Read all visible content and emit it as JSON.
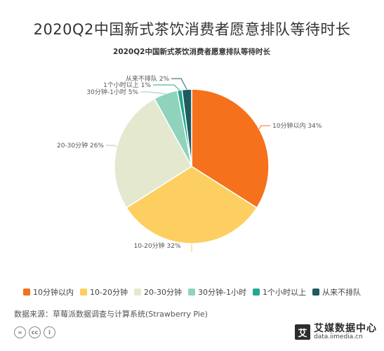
{
  "page_title": "2020Q2中国新式茶饮消费者愿意排队等待时长",
  "chart_data": {
    "type": "pie",
    "title": "2020Q2中国新式茶饮消费者愿意排队等待时长",
    "categories": [
      "10分钟以内",
      "10-20分钟",
      "20-30分钟",
      "30分钟-1小时",
      "1个小时以上",
      "从来不排队"
    ],
    "values": [
      34,
      32,
      26,
      5,
      1,
      2
    ],
    "unit": "%",
    "slice_labels": [
      "10分钟以内 34%",
      "10-20分钟 32%",
      "20-30分钟 26%",
      "30分钟-1小时 5%",
      "1个小时以上 1%",
      "从来不排队 2%"
    ],
    "colors": [
      "#F5711C",
      "#FDCF60",
      "#E3E8CF",
      "#8FD3BC",
      "#21A98E",
      "#1F5B5E"
    ],
    "legend_position": "bottom"
  },
  "legend": [
    {
      "label": "10分钟以内",
      "color": "#F5711C"
    },
    {
      "label": "10-20分钟",
      "color": "#FDCF60"
    },
    {
      "label": "20-30分钟",
      "color": "#E3E8CF"
    },
    {
      "label": "30分钟-1小时",
      "color": "#8FD3BC"
    },
    {
      "label": "1个小时以上",
      "color": "#21A98E"
    },
    {
      "label": "从来不排队",
      "color": "#1F5B5E"
    }
  ],
  "source": "数据来源：草莓派数据调查与计算系统(Strawberry Pie)",
  "license_icons": [
    "equals-icon",
    "cc-icon",
    "person-icon"
  ],
  "license_text": [
    "=",
    "cc",
    "i"
  ],
  "brand": {
    "mark": "艾",
    "name": "艾媒数据中心",
    "url": "data.iimedia.cn"
  }
}
